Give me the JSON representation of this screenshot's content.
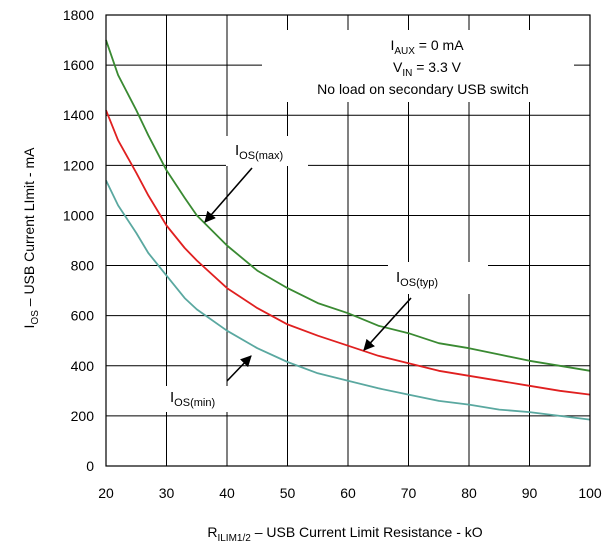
{
  "chart_data": {
    "type": "line",
    "xlim": [
      20,
      100
    ],
    "ylim": [
      0,
      1800
    ],
    "xticks": [
      20,
      30,
      40,
      50,
      60,
      70,
      80,
      90,
      100
    ],
    "yticks": [
      0,
      200,
      400,
      600,
      800,
      1000,
      1200,
      1400,
      1600,
      1800
    ],
    "grid": true,
    "xlabel": {
      "prefix": "R",
      "sub": "ILIM1/2",
      "rest": " – USB Current Limit Resistance   - kO"
    },
    "ylabel": {
      "prefix": "I",
      "sub": "OS",
      "rest": " – USB Current LImit - mA"
    },
    "annotation": {
      "line1": {
        "main": "I",
        "sub": "AUX",
        "rest": " = 0 mA"
      },
      "line2": {
        "main": "V",
        "sub": "IN",
        "rest": " = 3.3 V"
      },
      "line3": "No load on secondary USB switch"
    },
    "series": [
      {
        "name": "I OS(max)",
        "label_main": "I",
        "label_sub": "OS(max)",
        "color": "#3a8a32",
        "x": [
          20,
          22,
          25,
          27,
          30,
          33,
          35,
          40,
          45,
          50,
          55,
          60,
          65,
          70,
          75,
          80,
          85,
          90,
          95,
          100
        ],
        "values": [
          1700,
          1560,
          1420,
          1320,
          1180,
          1070,
          1000,
          880,
          780,
          710,
          650,
          610,
          560,
          530,
          490,
          470,
          445,
          420,
          400,
          380
        ]
      },
      {
        "name": "I OS(typ)",
        "label_main": "I",
        "label_sub": "OS(typ)",
        "color": "#e02020",
        "x": [
          20,
          22,
          25,
          27,
          30,
          33,
          35,
          40,
          45,
          50,
          55,
          60,
          65,
          70,
          75,
          80,
          85,
          90,
          95,
          100
        ],
        "values": [
          1420,
          1300,
          1170,
          1080,
          960,
          870,
          820,
          710,
          630,
          565,
          520,
          480,
          440,
          410,
          380,
          360,
          340,
          320,
          300,
          285
        ]
      },
      {
        "name": "I OS(min)",
        "label_main": "I",
        "label_sub": "OS(min)",
        "color": "#5aa8a0",
        "x": [
          20,
          22,
          25,
          27,
          30,
          33,
          35,
          40,
          45,
          50,
          55,
          60,
          65,
          70,
          75,
          80,
          85,
          90,
          95,
          100
        ],
        "values": [
          1140,
          1040,
          930,
          850,
          760,
          670,
          625,
          540,
          470,
          415,
          370,
          340,
          310,
          285,
          260,
          245,
          225,
          215,
          200,
          185
        ]
      }
    ]
  }
}
